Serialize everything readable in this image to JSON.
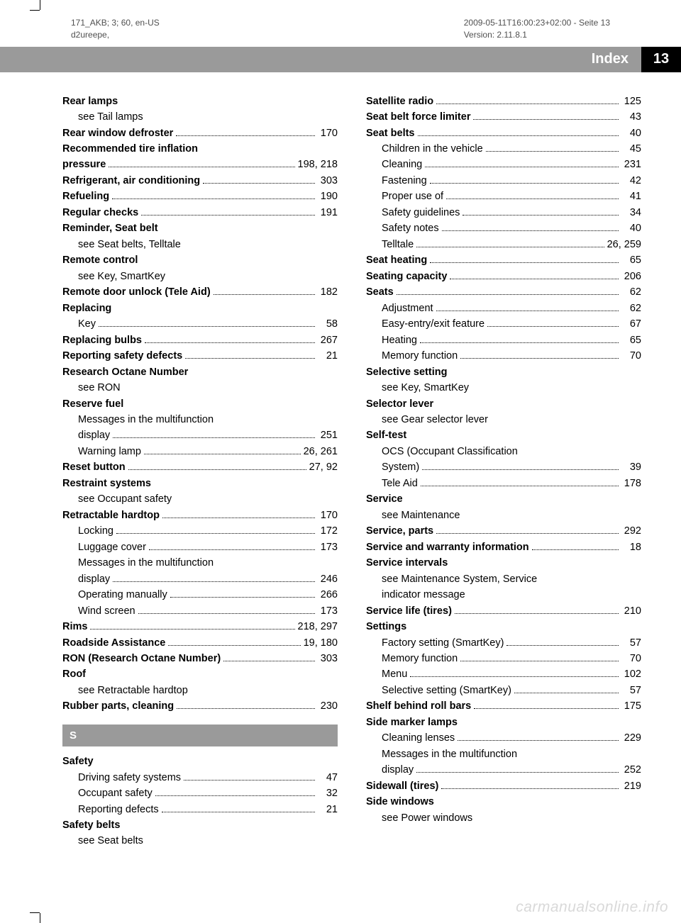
{
  "header": {
    "left_line1": "171_AKB; 3; 60, en-US",
    "left_line2": "d2ureepe,",
    "right_line1": "2009-05-11T16:00:23+02:00 - Seite 13",
    "right_line2": "Version: 2.11.8.1"
  },
  "index_bar": {
    "label": "Index",
    "page": "13"
  },
  "col1": [
    {
      "label": "Rear lamps",
      "bold": true
    },
    {
      "label": "see Tail lamps",
      "indent": true
    },
    {
      "label": "Rear window defroster",
      "bold": true,
      "page": "170"
    },
    {
      "label": "Recommended tire inflation",
      "bold": true,
      "noline": true
    },
    {
      "label": "pressure",
      "bold": true,
      "page": "198, 218"
    },
    {
      "label": "Refrigerant, air conditioning",
      "bold": true,
      "page": "303"
    },
    {
      "label": "Refueling",
      "bold": true,
      "page": "190"
    },
    {
      "label": "Regular checks",
      "bold": true,
      "page": "191"
    },
    {
      "label": "Reminder, Seat belt",
      "bold": true
    },
    {
      "label": "see Seat belts, Telltale",
      "indent": true
    },
    {
      "label": "Remote control",
      "bold": true
    },
    {
      "label": "see Key, SmartKey",
      "indent": true
    },
    {
      "label": "Remote door unlock (Tele Aid)",
      "bold": true,
      "page": "182"
    },
    {
      "label": "Replacing",
      "bold": true
    },
    {
      "label": "Key",
      "indent": true,
      "page": "58"
    },
    {
      "label": "Replacing bulbs",
      "bold": true,
      "page": "267"
    },
    {
      "label": "Reporting safety defects",
      "bold": true,
      "page": "21"
    },
    {
      "label": "Research Octane Number",
      "bold": true
    },
    {
      "label": "see RON",
      "indent": true
    },
    {
      "label": "Reserve fuel",
      "bold": true
    },
    {
      "label": "Messages in the multifunction",
      "indent": true,
      "noline": true
    },
    {
      "label": "display",
      "indent": true,
      "page": "251"
    },
    {
      "label": "Warning lamp",
      "indent": true,
      "page": "26, 261"
    },
    {
      "label": "Reset button",
      "bold": true,
      "page": "27, 92"
    },
    {
      "label": "Restraint systems",
      "bold": true
    },
    {
      "label": "see Occupant safety",
      "indent": true
    },
    {
      "label": "Retractable hardtop",
      "bold": true,
      "page": "170"
    },
    {
      "label": "Locking",
      "indent": true,
      "page": "172"
    },
    {
      "label": "Luggage cover",
      "indent": true,
      "page": "173"
    },
    {
      "label": "Messages in the multifunction",
      "indent": true,
      "noline": true
    },
    {
      "label": "display",
      "indent": true,
      "page": "246"
    },
    {
      "label": "Operating manually",
      "indent": true,
      "page": "266"
    },
    {
      "label": "Wind screen",
      "indent": true,
      "page": "173"
    },
    {
      "label": "Rims",
      "bold": true,
      "page": "218, 297"
    },
    {
      "label": "Roadside Assistance",
      "bold": true,
      "page": "19, 180"
    },
    {
      "label": "RON (Research Octane Number)",
      "bold": true,
      "page": "303"
    },
    {
      "label": "Roof",
      "bold": true
    },
    {
      "label": "see Retractable hardtop",
      "indent": true
    },
    {
      "label": "Rubber parts, cleaning",
      "bold": true,
      "page": "230"
    },
    {
      "section": "S"
    },
    {
      "label": "Safety",
      "bold": true
    },
    {
      "label": "Driving safety systems",
      "indent": true,
      "page": "47"
    },
    {
      "label": "Occupant safety",
      "indent": true,
      "page": "32"
    },
    {
      "label": "Reporting defects",
      "indent": true,
      "page": "21"
    },
    {
      "label": "Safety belts",
      "bold": true
    },
    {
      "label": "see Seat belts",
      "indent": true
    }
  ],
  "col2": [
    {
      "label": "Satellite radio",
      "bold": true,
      "page": "125"
    },
    {
      "label": "Seat belt force limiter",
      "bold": true,
      "page": "43"
    },
    {
      "label": "Seat belts",
      "bold": true,
      "page": "40"
    },
    {
      "label": "Children in the vehicle",
      "indent": true,
      "page": "45"
    },
    {
      "label": "Cleaning",
      "indent": true,
      "page": "231"
    },
    {
      "label": "Fastening",
      "indent": true,
      "page": "42"
    },
    {
      "label": "Proper use of",
      "indent": true,
      "page": "41"
    },
    {
      "label": "Safety guidelines",
      "indent": true,
      "page": "34"
    },
    {
      "label": "Safety notes",
      "indent": true,
      "page": "40"
    },
    {
      "label": "Telltale",
      "indent": true,
      "page": "26, 259"
    },
    {
      "label": "Seat heating",
      "bold": true,
      "page": "65"
    },
    {
      "label": "Seating capacity",
      "bold": true,
      "page": "206"
    },
    {
      "label": "Seats",
      "bold": true,
      "page": "62"
    },
    {
      "label": "Adjustment",
      "indent": true,
      "page": "62"
    },
    {
      "label": "Easy-entry/exit feature",
      "indent": true,
      "page": "67"
    },
    {
      "label": "Heating",
      "indent": true,
      "page": "65"
    },
    {
      "label": "Memory function",
      "indent": true,
      "page": "70"
    },
    {
      "label": "Selective setting",
      "bold": true
    },
    {
      "label": "see Key, SmartKey",
      "indent": true
    },
    {
      "label": "Selector lever",
      "bold": true
    },
    {
      "label": "see Gear selector lever",
      "indent": true
    },
    {
      "label": "Self-test",
      "bold": true
    },
    {
      "label": "OCS (Occupant Classification",
      "indent": true,
      "noline": true
    },
    {
      "label": "System)",
      "indent": true,
      "page": "39"
    },
    {
      "label": "Tele Aid",
      "indent": true,
      "page": "178"
    },
    {
      "label": "Service",
      "bold": true
    },
    {
      "label": "see Maintenance",
      "indent": true
    },
    {
      "label": "Service, parts",
      "bold": true,
      "page": "292"
    },
    {
      "label": "Service and warranty information",
      "bold": true,
      "page": "18"
    },
    {
      "label": "Service intervals",
      "bold": true
    },
    {
      "label": "see Maintenance System, Service",
      "indent": true,
      "noline": true
    },
    {
      "label": "indicator message",
      "indent": true
    },
    {
      "label": "Service life (tires)",
      "bold": true,
      "page": "210"
    },
    {
      "label": "Settings",
      "bold": true
    },
    {
      "label": "Factory setting (SmartKey)",
      "indent": true,
      "page": "57"
    },
    {
      "label": "Memory function",
      "indent": true,
      "page": "70"
    },
    {
      "label": "Menu",
      "indent": true,
      "page": "102"
    },
    {
      "label": "Selective setting (SmartKey)",
      "indent": true,
      "page": "57"
    },
    {
      "label": "Shelf behind roll bars",
      "bold": true,
      "page": "175"
    },
    {
      "label": "Side marker lamps",
      "bold": true
    },
    {
      "label": "Cleaning lenses",
      "indent": true,
      "page": "229"
    },
    {
      "label": "Messages in the multifunction",
      "indent": true,
      "noline": true
    },
    {
      "label": "display",
      "indent": true,
      "page": "252"
    },
    {
      "label": "Sidewall (tires)",
      "bold": true,
      "page": "219"
    },
    {
      "label": "Side windows",
      "bold": true
    },
    {
      "label": "see Power windows",
      "indent": true
    }
  ],
  "watermark": "carmanualsonline.info"
}
